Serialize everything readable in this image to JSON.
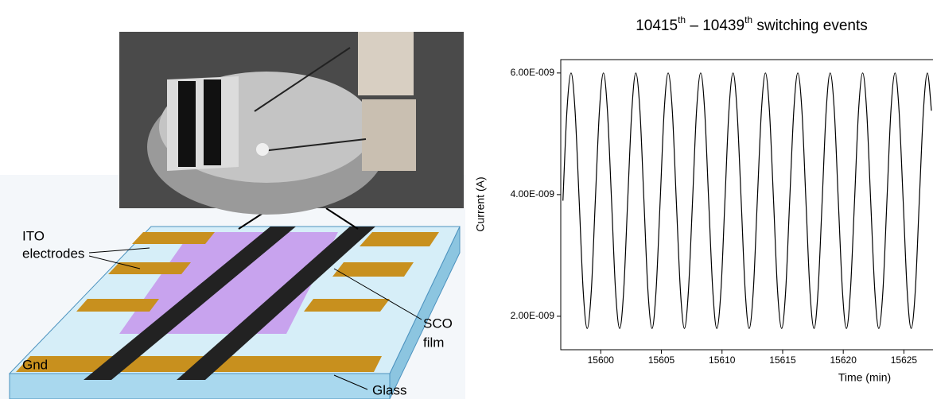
{
  "diagram": {
    "ito_label": [
      "ITO",
      "electrodes"
    ],
    "sco_label": [
      "SCO",
      "film"
    ],
    "gnd_label": "Gnd",
    "glass_label": "Glass"
  },
  "chart_data": {
    "type": "line",
    "title": "10415th – 10439th  switching events",
    "xlabel": "Time (min)",
    "ylabel": "Current (A)",
    "xlim": [
      15596.7,
      15627.4
    ],
    "xticks": [
      15600,
      15605,
      15610,
      15615,
      15620,
      15625
    ],
    "ylim": [
      1.45e-09,
      6.22e-09
    ],
    "yticks": [
      {
        "value": 2e-09,
        "label": "2.00E-009"
      },
      {
        "value": 4e-09,
        "label": "4.00E-009"
      },
      {
        "value": 6e-09,
        "label": "6.00E-009"
      }
    ],
    "x": [
      15596.88,
      15597.21,
      15597.55,
      15597.88,
      15598.22,
      15598.55,
      15598.88,
      15599.22,
      15599.55,
      15599.89,
      15600.22,
      15600.55,
      15600.89,
      15601.22,
      15601.56,
      15601.89,
      15602.22,
      15602.56,
      15602.89,
      15603.23,
      15603.56,
      15603.89,
      15604.23,
      15604.56,
      15604.9,
      15605.23,
      15605.56,
      15605.9,
      15606.23,
      15606.57,
      15606.9,
      15607.23,
      15607.57,
      15607.9,
      15608.24,
      15608.57,
      15608.9,
      15609.24,
      15609.57,
      15609.91,
      15610.24,
      15610.57,
      15610.91,
      15611.24,
      15611.58,
      15611.91,
      15612.24,
      15612.58,
      15612.91,
      15613.25,
      15613.58,
      15613.91,
      15614.25,
      15614.58,
      15614.92,
      15615.25,
      15615.58,
      15615.92,
      15616.25,
      15616.59,
      15616.92,
      15617.25,
      15617.59,
      15617.92,
      15618.26,
      15618.59,
      15618.92,
      15619.26,
      15619.59,
      15619.93,
      15620.26,
      15620.59,
      15620.93,
      15621.26,
      15621.6,
      15621.93,
      15622.26,
      15622.6,
      15622.93,
      15623.27,
      15623.6,
      15623.93,
      15624.27,
      15624.6,
      15624.94,
      15625.27,
      15625.6,
      15625.94,
      15626.27,
      15626.61,
      15626.94,
      15627.27
    ],
    "series": [
      {
        "color": "#000000",
        "values": [
          3.9e-09,
          5.38e-09,
          6e-09,
          5.38e-09,
          3.9e-09,
          2.42e-09,
          1.8e-09,
          2.42e-09,
          3.9e-09,
          5.38e-09,
          6e-09,
          5.38e-09,
          3.9e-09,
          2.42e-09,
          1.8e-09,
          2.42e-09,
          3.9e-09,
          5.38e-09,
          6e-09,
          5.38e-09,
          3.9e-09,
          2.42e-09,
          1.8e-09,
          2.42e-09,
          3.9e-09,
          5.38e-09,
          6e-09,
          5.38e-09,
          3.9e-09,
          2.42e-09,
          1.8e-09,
          2.42e-09,
          3.9e-09,
          5.38e-09,
          6e-09,
          5.38e-09,
          3.9e-09,
          2.42e-09,
          1.8e-09,
          2.42e-09,
          3.9e-09,
          5.38e-09,
          6e-09,
          5.38e-09,
          3.9e-09,
          2.42e-09,
          1.8e-09,
          2.42e-09,
          3.9e-09,
          5.38e-09,
          6e-09,
          5.38e-09,
          3.9e-09,
          2.42e-09,
          1.8e-09,
          2.42e-09,
          3.9e-09,
          5.38e-09,
          6e-09,
          5.38e-09,
          3.9e-09,
          2.42e-09,
          1.8e-09,
          2.42e-09,
          3.9e-09,
          5.38e-09,
          6e-09,
          5.38e-09,
          3.9e-09,
          2.42e-09,
          1.8e-09,
          2.42e-09,
          3.9e-09,
          5.38e-09,
          6e-09,
          5.38e-09,
          3.9e-09,
          2.42e-09,
          1.8e-09,
          2.42e-09,
          3.9e-09,
          5.38e-09,
          6e-09,
          5.38e-09,
          3.9e-09,
          2.42e-09,
          1.8e-09,
          2.42e-09,
          3.9e-09,
          5.38e-09,
          6e-09,
          5.38e-09
        ]
      }
    ]
  }
}
